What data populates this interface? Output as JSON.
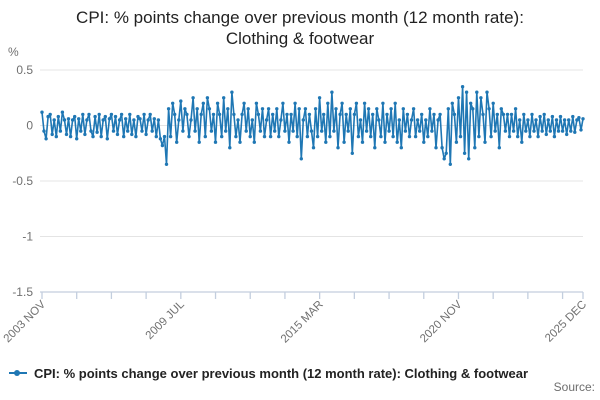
{
  "chart_data": {
    "type": "line",
    "title_line1": "CPI: % points change over previous month (12 month rate):",
    "title_line2": "Clothing & footwear",
    "unit_label": "%",
    "series_name": "CPI: % points change over previous month (12 month rate): Clothing & footwear",
    "source_label": "Source:",
    "x_start": "2003 NOV",
    "x_end": "2025 DEC",
    "frequency": "monthly",
    "ylim": [
      -1.5,
      0.5
    ],
    "grid": "horizontal-only",
    "legend_position": "bottom-left",
    "y_ticks": [
      {
        "value": 0.5,
        "label": "0.5"
      },
      {
        "value": 0,
        "label": "0"
      },
      {
        "value": -0.5,
        "label": "-0.5"
      },
      {
        "value": -1,
        "label": "-1"
      },
      {
        "value": -1.5,
        "label": "-1.5"
      }
    ],
    "x_tick_month_indices": [
      0,
      17,
      34,
      51,
      68,
      85,
      102,
      119,
      136,
      153,
      170,
      187,
      204,
      221,
      238,
      255,
      265
    ],
    "x_tick_labels": [
      {
        "month_index": 0,
        "label": "2003 NOV"
      },
      {
        "month_index": 68,
        "label": "2009 JUL"
      },
      {
        "month_index": 136,
        "label": "2015 MAR"
      },
      {
        "month_index": 204,
        "label": "2020 NOV"
      },
      {
        "month_index": 265,
        "label": "2025 DEC"
      }
    ],
    "colors": {
      "series": "#1f77b4",
      "grid": "#e4e4e4",
      "axis": "#c3cede",
      "tick_text": "#707070",
      "title_text": "#222222",
      "source_text": "#6e6e6e"
    },
    "values": [
      0.12,
      -0.05,
      -0.12,
      0.08,
      0.1,
      -0.08,
      0.05,
      -0.1,
      0.08,
      -0.05,
      0.12,
      0.05,
      -0.08,
      0.06,
      -0.1,
      0.05,
      0.08,
      -0.12,
      0.06,
      -0.05,
      0.1,
      -0.08,
      0.05,
      0.1,
      -0.05,
      -0.1,
      0.08,
      -0.06,
      0.1,
      -0.1,
      0.05,
      0.08,
      -0.12,
      0.06,
      0.1,
      -0.05,
      0.08,
      -0.08,
      0.05,
      0.1,
      -0.1,
      0.06,
      -0.05,
      0.1,
      -0.08,
      0.05,
      -0.1,
      0.08,
      0.06,
      -0.05,
      0.1,
      -0.08,
      0.05,
      0.1,
      -0.05,
      0.06,
      -0.1,
      0.05,
      -0.12,
      -0.18,
      -0.1,
      -0.35,
      0.15,
      -0.1,
      0.2,
      0.1,
      -0.15,
      0.05,
      0.22,
      -0.05,
      0.15,
      0.1,
      -0.1,
      0.05,
      0.25,
      -0.05,
      0.15,
      -0.15,
      0.1,
      0.2,
      -0.1,
      0.25,
      0.15,
      -0.05,
      0.1,
      -0.15,
      0.2,
      0.1,
      -0.1,
      0.25,
      -0.05,
      0.15,
      -0.2,
      0.3,
      0.1,
      -0.1,
      0.05,
      -0.15,
      0.1,
      0.2,
      -0.05,
      0.15,
      -0.1,
      0.05,
      -0.15,
      0.2,
      0.1,
      -0.05,
      0.15,
      -0.1,
      0.05,
      0.15,
      -0.1,
      0.1,
      -0.05,
      0.15,
      -0.1,
      0.05,
      0.2,
      -0.05,
      0.1,
      -0.15,
      0.1,
      -0.05,
      0.2,
      -0.1,
      0.15,
      -0.3,
      0.05,
      0.15,
      -0.1,
      0.1,
      -0.05,
      -0.2,
      0.15,
      -0.1,
      0.25,
      -0.05,
      0.1,
      -0.15,
      0.2,
      -0.1,
      0.3,
      -0.05,
      0.15,
      -0.2,
      0.1,
      0.2,
      -0.15,
      0.1,
      -0.05,
      0.15,
      -0.25,
      0.1,
      0.2,
      -0.1,
      0.05,
      -0.15,
      0.2,
      -0.05,
      0.15,
      -0.1,
      0.1,
      -0.2,
      0.15,
      0.05,
      -0.1,
      0.2,
      -0.15,
      0.1,
      -0.05,
      0.15,
      -0.1,
      0.2,
      -0.15,
      0.05,
      -0.2,
      0.15,
      -0.05,
      0.1,
      -0.1,
      0.05,
      0.15,
      -0.1,
      0.05,
      -0.05,
      0.1,
      -0.15,
      0.05,
      -0.1,
      0.15,
      -0.05,
      0.1,
      -0.2,
      0.05,
      0.1,
      -0.2,
      -0.3,
      -0.25,
      0.15,
      -0.35,
      0.2,
      0.1,
      -0.15,
      0.25,
      -0.1,
      0.35,
      -0.25,
      0.3,
      -0.3,
      0.2,
      0.15,
      -0.2,
      0.3,
      -0.1,
      0.25,
      0.1,
      -0.15,
      0.3,
      0.15,
      -0.1,
      0.2,
      -0.05,
      0.1,
      -0.2,
      0.15,
      0.1,
      -0.05,
      0.1,
      -0.1,
      0.1,
      -0.05,
      0.15,
      -0.1,
      0.05,
      -0.15,
      0.1,
      -0.05,
      0.05,
      -0.1,
      0.1,
      -0.05,
      0.05,
      -0.1,
      0.08,
      -0.05,
      0.1,
      -0.08,
      0.05,
      -0.05,
      0.08,
      -0.1,
      0.05,
      -0.05,
      0.08,
      -0.05,
      0.05,
      -0.08,
      0.05,
      -0.05,
      0.08,
      -0.06,
      0.05,
      0.07,
      -0.04,
      0.06
    ]
  }
}
